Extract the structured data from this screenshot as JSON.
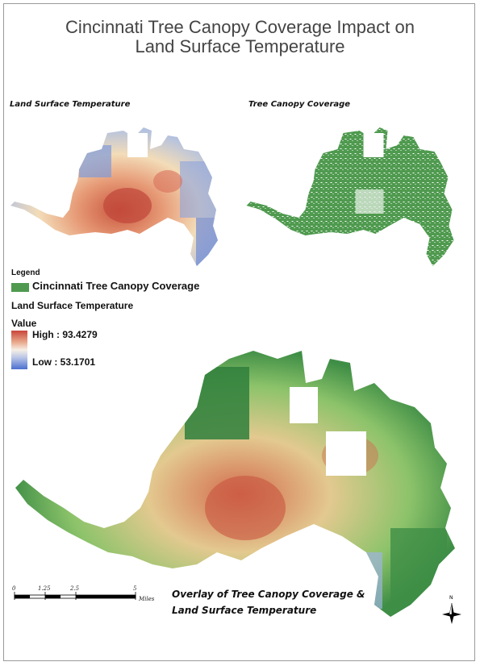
{
  "title_line1": "Cincinnati Tree Canopy Coverage Impact on",
  "title_line2": "Land Surface Temperature",
  "panels": {
    "lst_label": "Land Surface Temperature",
    "canopy_label": "Tree Canopy Coverage"
  },
  "legend": {
    "title": "Legend",
    "canopy_entry": "Cincinnati Tree Canopy Coverage",
    "lst_entry": "Land Surface Temperature",
    "value_label": "Value",
    "high_label": "High : 93.4279",
    "low_label": "Low : 53.1701",
    "colors": {
      "canopy": "#4f9a4f",
      "high": "#c8463a",
      "mid": "#f6efe6",
      "low": "#4a6fd0"
    }
  },
  "overlay_caption_line1": "Overlay of Tree Canopy Coverage &",
  "overlay_caption_line2": "Land Surface Temperature",
  "scale_bar": {
    "ticks": [
      "0",
      "1.25",
      "2.5",
      "5"
    ],
    "unit": "Miles"
  },
  "north_arrow": {
    "label": "N",
    "icon": "north-arrow-icon"
  }
}
